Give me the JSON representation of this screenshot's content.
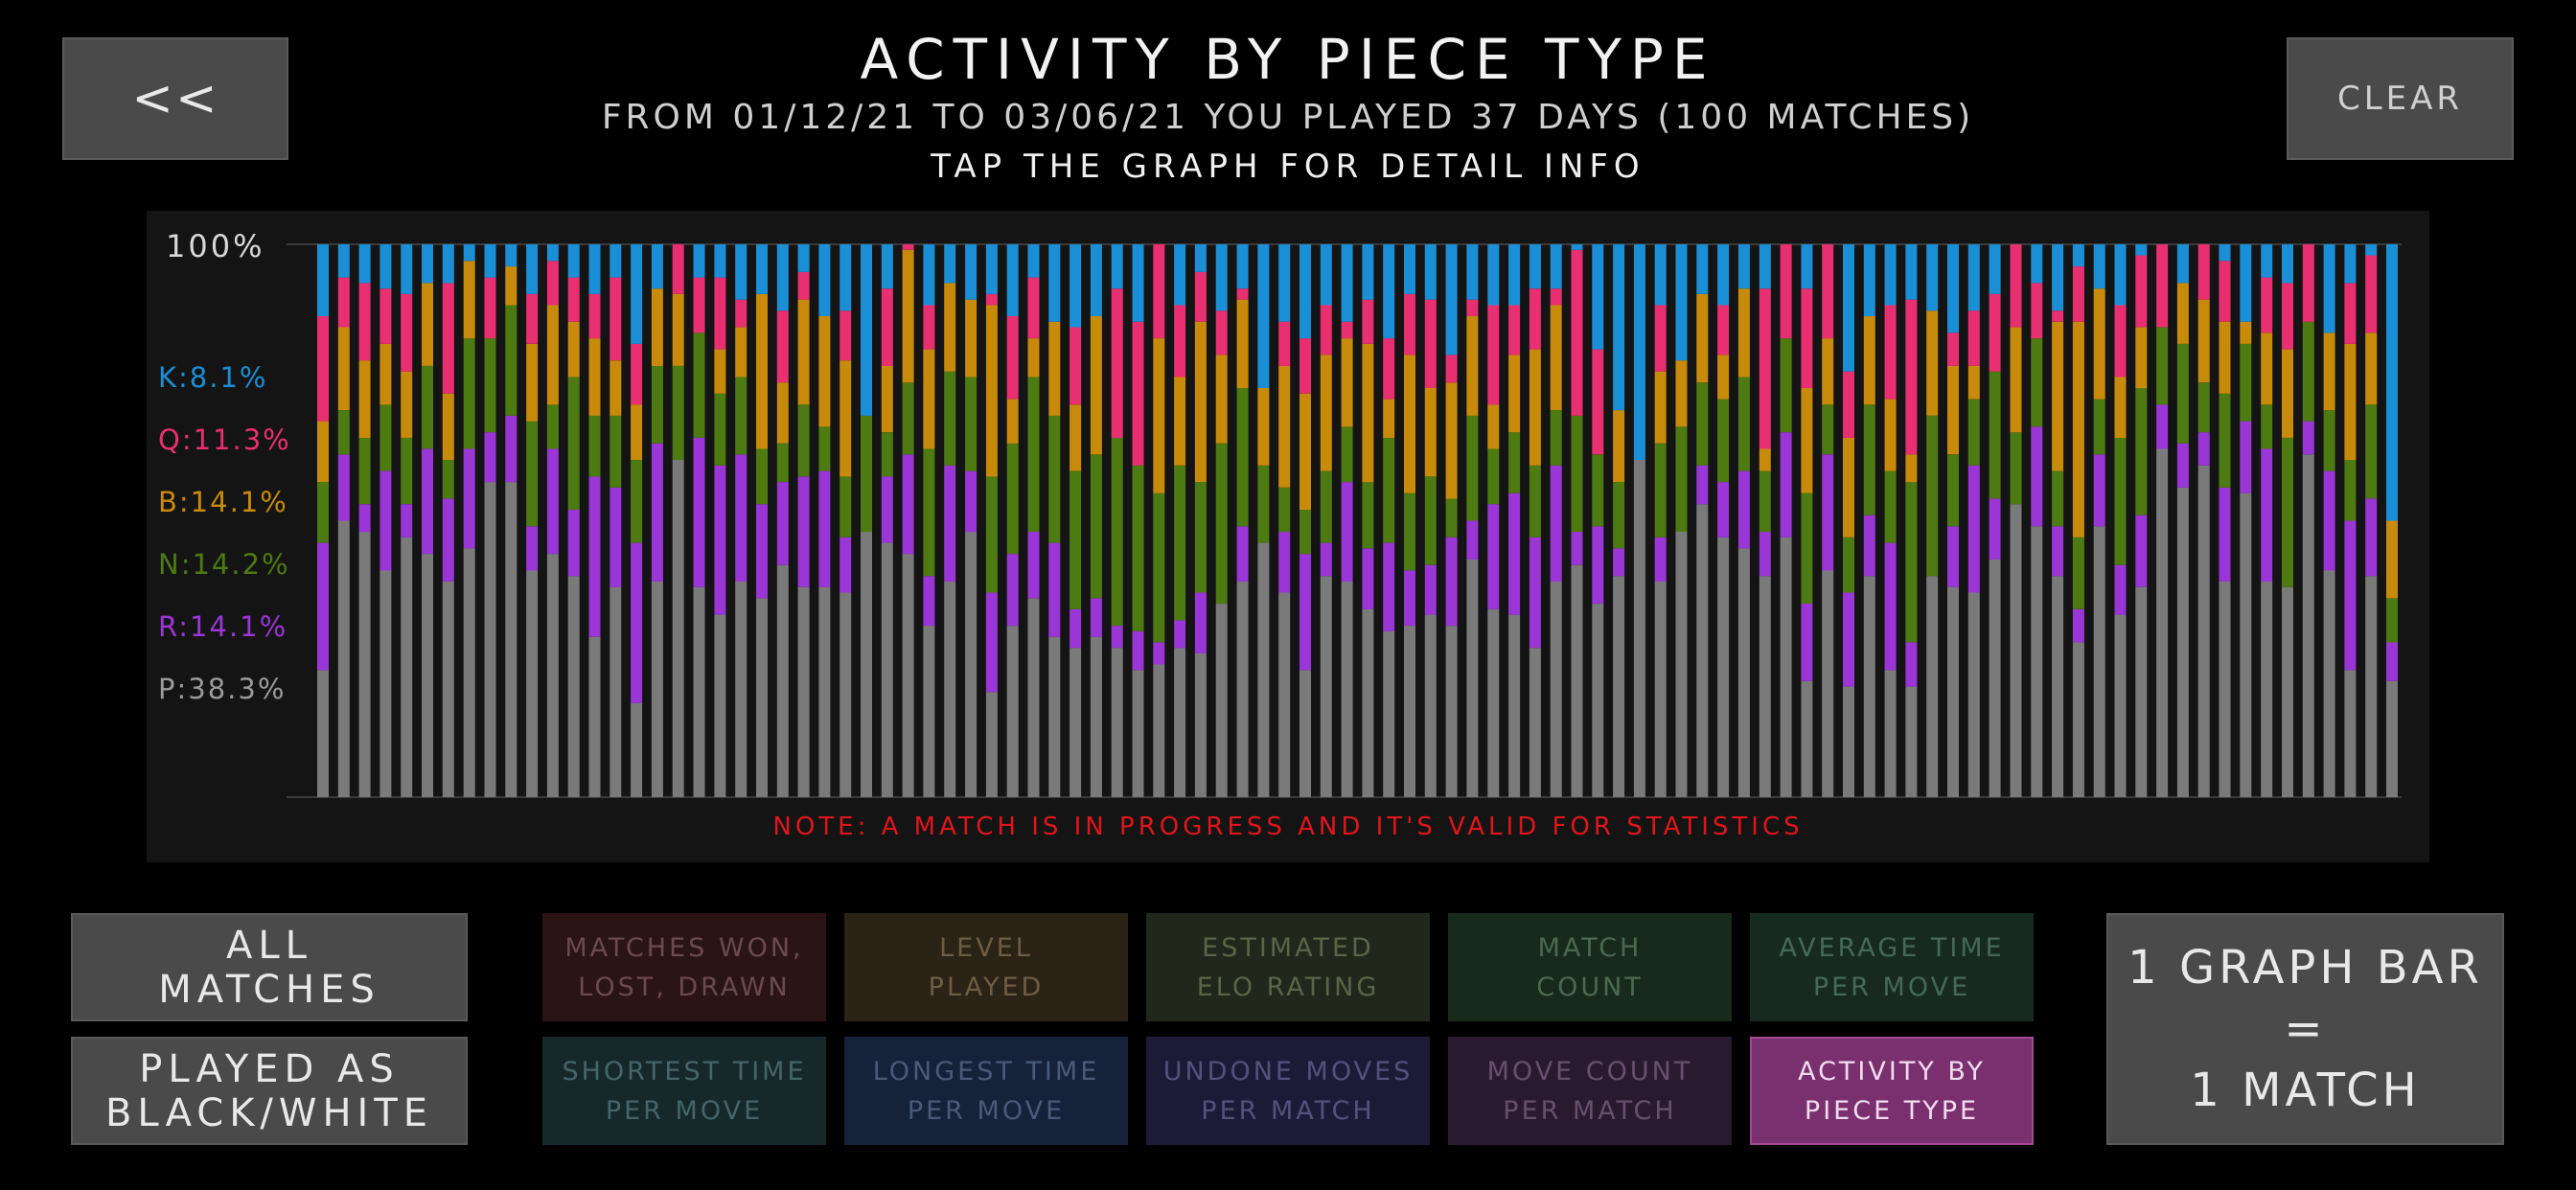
{
  "header": {
    "back_label": "<<",
    "clear_label": "CLEAR",
    "title": "ACTIVITY BY PIECE TYPE",
    "subtitle": "FROM 01/12/21 TO 03/06/21 YOU PLAYED 37 DAYS (100 MATCHES)",
    "hint": "TAP THE GRAPH FOR DETAIL INFO"
  },
  "chart_data": {
    "type": "bar",
    "stacked": true,
    "top_label": "100%",
    "ylim": [
      0,
      100
    ],
    "legend": [
      {
        "label": "K:8.1%",
        "color": "#1a8fd6"
      },
      {
        "label": "Q:11.3%",
        "color": "#e83070"
      },
      {
        "label": "B:14.1%",
        "color": "#c88a0a"
      },
      {
        "label": "N:14.2%",
        "color": "#4e7a12"
      },
      {
        "label": "R:14.1%",
        "color": "#9a35d6"
      },
      {
        "label": "P:38.3%",
        "color": "#9a9a9a"
      }
    ],
    "series_order": [
      "P",
      "R",
      "N",
      "B",
      "Q",
      "K"
    ],
    "series_colors": {
      "P": "#7a7a7a",
      "R": "#9a35d6",
      "N": "#4e7a12",
      "B": "#c88a0a",
      "Q": "#e83070",
      "K": "#1a8fd6"
    },
    "note": "NOTE: A MATCH IS IN PROGRESS AND IT'S VALID FOR STATISTICS",
    "bars": [
      [
        23,
        23,
        11,
        11,
        19,
        13
      ],
      [
        50,
        12,
        8,
        15,
        9,
        6
      ],
      [
        48,
        5,
        12,
        14,
        14,
        7
      ],
      [
        41,
        18,
        12,
        11,
        10,
        8
      ],
      [
        47,
        6,
        12,
        12,
        14,
        9
      ],
      [
        44,
        19,
        15,
        15,
        0,
        7
      ],
      [
        39,
        15,
        7,
        12,
        20,
        7
      ],
      [
        45,
        18,
        20,
        14,
        0,
        3
      ],
      [
        57,
        9,
        17,
        0,
        11,
        6
      ],
      [
        57,
        12,
        20,
        7,
        0,
        4
      ],
      [
        41,
        8,
        19,
        14,
        9,
        9
      ],
      [
        44,
        19,
        8,
        18,
        8,
        3
      ],
      [
        40,
        12,
        24,
        10,
        8,
        6
      ],
      [
        29,
        29,
        11,
        14,
        8,
        9
      ],
      [
        38,
        18,
        13,
        10,
        15,
        6
      ],
      [
        17,
        29,
        15,
        10,
        11,
        18
      ],
      [
        39,
        25,
        14,
        14,
        0,
        8
      ],
      [
        61,
        0,
        17,
        13,
        9,
        0
      ],
      [
        38,
        27,
        19,
        0,
        10,
        6
      ],
      [
        33,
        27,
        13,
        8,
        13,
        6
      ],
      [
        39,
        23,
        14,
        9,
        5,
        10
      ],
      [
        36,
        17,
        10,
        28,
        0,
        9
      ],
      [
        42,
        15,
        7,
        11,
        13,
        12
      ],
      [
        38,
        20,
        13,
        19,
        5,
        5
      ],
      [
        38,
        21,
        8,
        20,
        0,
        13
      ],
      [
        37,
        10,
        11,
        21,
        9,
        12
      ],
      [
        48,
        0,
        21,
        0,
        0,
        31
      ],
      [
        46,
        12,
        8,
        12,
        14,
        8
      ],
      [
        44,
        18,
        13,
        24,
        1,
        0
      ],
      [
        31,
        9,
        23,
        18,
        8,
        11
      ],
      [
        39,
        21,
        17,
        16,
        0,
        7
      ],
      [
        48,
        11,
        17,
        14,
        0,
        10
      ],
      [
        19,
        18,
        21,
        31,
        2,
        9
      ],
      [
        31,
        13,
        20,
        8,
        15,
        13
      ],
      [
        36,
        12,
        28,
        7,
        11,
        6
      ],
      [
        29,
        17,
        23,
        17,
        0,
        14
      ],
      [
        27,
        7,
        25,
        12,
        14,
        15
      ],
      [
        29,
        7,
        26,
        25,
        0,
        13
      ],
      [
        27,
        4,
        34,
        0,
        27,
        8
      ],
      [
        23,
        7,
        30,
        0,
        26,
        14
      ],
      [
        24,
        4,
        27,
        28,
        17,
        0
      ],
      [
        27,
        5,
        28,
        16,
        13,
        11
      ],
      [
        26,
        11,
        20,
        29,
        9,
        5
      ],
      [
        35,
        0,
        29,
        16,
        8,
        12
      ],
      [
        39,
        10,
        25,
        16,
        2,
        8
      ],
      [
        46,
        0,
        14,
        14,
        0,
        26
      ],
      [
        37,
        11,
        8,
        22,
        8,
        14
      ],
      [
        23,
        21,
        8,
        21,
        10,
        17
      ],
      [
        40,
        6,
        13,
        21,
        9,
        11
      ],
      [
        39,
        18,
        10,
        16,
        3,
        14
      ],
      [
        34,
        11,
        12,
        25,
        8,
        10
      ],
      [
        30,
        16,
        19,
        7,
        11,
        17
      ],
      [
        31,
        10,
        14,
        25,
        11,
        9
      ],
      [
        33,
        9,
        16,
        16,
        16,
        10
      ],
      [
        31,
        16,
        7,
        21,
        5,
        20
      ],
      [
        43,
        7,
        19,
        18,
        3,
        10
      ],
      [
        34,
        19,
        10,
        8,
        18,
        11
      ],
      [
        33,
        22,
        11,
        14,
        9,
        11
      ],
      [
        27,
        20,
        13,
        21,
        11,
        8
      ],
      [
        39,
        21,
        10,
        19,
        3,
        8
      ],
      [
        42,
        6,
        21,
        0,
        30,
        1
      ],
      [
        35,
        14,
        13,
        0,
        19,
        19
      ],
      [
        40,
        5,
        12,
        13,
        0,
        30
      ],
      [
        61,
        0,
        0,
        0,
        0,
        39
      ],
      [
        39,
        8,
        17,
        13,
        12,
        11
      ],
      [
        48,
        0,
        19,
        12,
        0,
        21
      ],
      [
        53,
        7,
        15,
        16,
        0,
        9
      ],
      [
        47,
        10,
        15,
        8,
        9,
        11
      ],
      [
        45,
        14,
        17,
        16,
        0,
        8
      ],
      [
        40,
        8,
        11,
        4,
        29,
        8
      ],
      [
        47,
        19,
        17,
        0,
        17,
        0
      ],
      [
        21,
        14,
        20,
        19,
        18,
        8
      ],
      [
        41,
        21,
        9,
        12,
        17,
        0
      ],
      [
        20,
        17,
        10,
        18,
        12,
        23
      ],
      [
        40,
        11,
        20,
        16,
        0,
        13
      ],
      [
        23,
        23,
        13,
        13,
        17,
        11
      ],
      [
        20,
        8,
        29,
        5,
        28,
        10
      ],
      [
        40,
        0,
        29,
        19,
        0,
        12
      ],
      [
        38,
        11,
        13,
        16,
        6,
        16
      ],
      [
        37,
        23,
        12,
        6,
        10,
        12
      ],
      [
        43,
        11,
        23,
        0,
        14,
        9
      ],
      [
        53,
        0,
        13,
        19,
        15,
        0
      ],
      [
        49,
        18,
        16,
        0,
        10,
        7
      ],
      [
        40,
        9,
        10,
        27,
        2,
        12
      ],
      [
        28,
        6,
        13,
        39,
        10,
        4
      ],
      [
        49,
        13,
        10,
        20,
        0,
        8
      ],
      [
        33,
        9,
        23,
        11,
        13,
        11
      ],
      [
        38,
        13,
        23,
        11,
        13,
        2
      ],
      [
        63,
        8,
        14,
        0,
        15,
        0
      ],
      [
        56,
        8,
        18,
        11,
        0,
        7
      ],
      [
        60,
        6,
        9,
        15,
        10,
        0
      ],
      [
        39,
        17,
        17,
        13,
        11,
        3
      ],
      [
        55,
        13,
        14,
        4,
        0,
        14
      ],
      [
        39,
        24,
        8,
        13,
        10,
        6
      ],
      [
        38,
        0,
        27,
        16,
        12,
        7
      ],
      [
        62,
        6,
        18,
        0,
        14,
        0
      ],
      [
        41,
        18,
        11,
        14,
        0,
        16
      ],
      [
        23,
        27,
        11,
        21,
        11,
        7
      ],
      [
        40,
        14,
        17,
        13,
        14,
        2
      ],
      [
        21,
        7,
        8,
        14,
        0,
        50
      ]
    ]
  },
  "side": {
    "all_matches": "ALL\nMATCHES",
    "played_as": "PLAYED AS\nBLACK/WHITE",
    "bar_info": "1 GRAPH BAR\n=\n1 MATCH"
  },
  "modes": [
    {
      "label": "MATCHES WON,\nLOST, DRAWN",
      "bg": "#2a1416",
      "fg": "#6b4a4e",
      "active": false
    },
    {
      "label": "LEVEL\nPLAYED",
      "bg": "#2b2316",
      "fg": "#6e5d45",
      "active": false
    },
    {
      "label": "ESTIMATED\nELO RATING",
      "bg": "#21271a",
      "fg": "#5a6448",
      "active": false
    },
    {
      "label": "MATCH\nCOUNT",
      "bg": "#182a1c",
      "fg": "#4b6850",
      "active": false
    },
    {
      "label": "AVERAGE TIME\nPER MOVE",
      "bg": "#162a22",
      "fg": "#46685a",
      "active": false
    },
    {
      "label": "SHORTEST TIME\nPER MOVE",
      "bg": "#15282a",
      "fg": "#46656a",
      "active": false
    },
    {
      "label": "LONGEST TIME\nPER MOVE",
      "bg": "#16213a",
      "fg": "#4a5a78",
      "active": false
    },
    {
      "label": "UNDONE MOVES\nPER MATCH",
      "bg": "#1d1a38",
      "fg": "#57507a",
      "active": false
    },
    {
      "label": "MOVE COUNT\nPER MATCH",
      "bg": "#2a1a30",
      "fg": "#66506c",
      "active": false
    },
    {
      "label": "ACTIVITY BY\nPIECE TYPE",
      "bg": "#7a2f6e",
      "fg": "#f2dcef",
      "active": true
    }
  ]
}
